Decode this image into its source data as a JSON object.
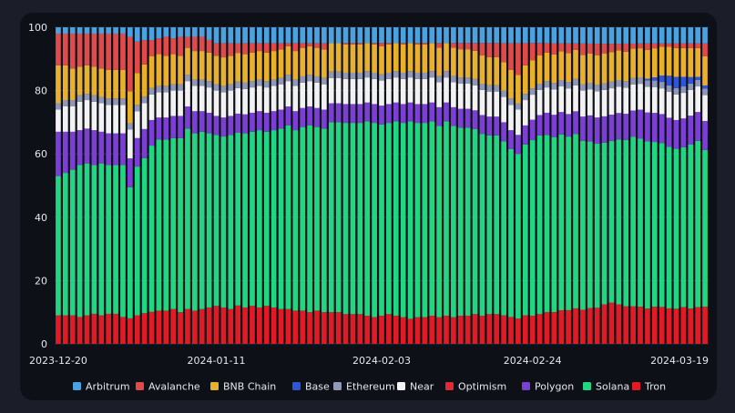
{
  "colors": {
    "Arbitrum": "#4aa3e0",
    "Avalanche": "#e04a4a",
    "BNB Chain": "#e8b02c",
    "Base": "#2f56d8",
    "Ethereum": "#8f98b8",
    "Near": "#f2f2f2",
    "Optimism": "#e02a36",
    "Polygon": "#7b3fd6",
    "Solana": "#22d582",
    "Tron": "#e01b26"
  },
  "chart_data": {
    "type": "bar",
    "stacked": true,
    "percent": true,
    "ylim": [
      0,
      100
    ],
    "yticks": [
      0,
      20,
      40,
      60,
      80,
      100
    ],
    "x_tick_labels": [
      "2023-12-20",
      "2024-01-11",
      "2024-02-03",
      "2024-02-24",
      "2024-03-19"
    ],
    "x_tick_index": [
      0,
      22,
      45,
      66,
      89
    ],
    "legend": [
      "Arbitrum",
      "Avalanche",
      "BNB Chain",
      "Base",
      "Ethereum",
      "Near",
      "Optimism",
      "Polygon",
      "Solana",
      "Tron"
    ],
    "stack_order": [
      "Tron",
      "Optimism",
      "Solana",
      "Polygon",
      "Near",
      "Ethereum",
      "Base",
      "BNB Chain",
      "Avalanche",
      "Arbitrum"
    ],
    "x": [
      "2023-12-20",
      "2023-12-21",
      "2023-12-22",
      "2023-12-23",
      "2023-12-24",
      "2023-12-25",
      "2023-12-26",
      "2023-12-27",
      "2023-12-28",
      "2023-12-29",
      "2023-12-30",
      "2023-12-31",
      "2024-01-01",
      "2024-01-02",
      "2024-01-03",
      "2024-01-04",
      "2024-01-05",
      "2024-01-06",
      "2024-01-07",
      "2024-01-08",
      "2024-01-09",
      "2024-01-10",
      "2024-01-11",
      "2024-01-12",
      "2024-01-13",
      "2024-01-14",
      "2024-01-15",
      "2024-01-16",
      "2024-01-17",
      "2024-01-18",
      "2024-01-19",
      "2024-01-20",
      "2024-01-21",
      "2024-01-22",
      "2024-01-23",
      "2024-01-24",
      "2024-01-25",
      "2024-01-26",
      "2024-01-27",
      "2024-01-28",
      "2024-01-29",
      "2024-01-30",
      "2024-01-31",
      "2024-02-01",
      "2024-02-02",
      "2024-02-03",
      "2024-02-04",
      "2024-02-05",
      "2024-02-06",
      "2024-02-07",
      "2024-02-08",
      "2024-02-09",
      "2024-02-10",
      "2024-02-11",
      "2024-02-12",
      "2024-02-13",
      "2024-02-14",
      "2024-02-15",
      "2024-02-16",
      "2024-02-17",
      "2024-02-18",
      "2024-02-19",
      "2024-02-20",
      "2024-02-21",
      "2024-02-22",
      "2024-02-23",
      "2024-02-24",
      "2024-02-25",
      "2024-02-26",
      "2024-02-27",
      "2024-02-28",
      "2024-02-29",
      "2024-03-01",
      "2024-03-02",
      "2024-03-03",
      "2024-03-04",
      "2024-03-05",
      "2024-03-06",
      "2024-03-07",
      "2024-03-08",
      "2024-03-09",
      "2024-03-10",
      "2024-03-11",
      "2024-03-12",
      "2024-03-13",
      "2024-03-14",
      "2024-03-15",
      "2024-03-16",
      "2024-03-17",
      "2024-03-18",
      "2024-03-19"
    ],
    "series": [
      {
        "name": "Tron",
        "values": [
          9,
          9,
          9,
          8.5,
          9,
          9.5,
          9,
          9.5,
          9.5,
          8.5,
          8,
          9,
          9.5,
          10,
          10.5,
          10.5,
          11,
          10,
          11,
          10.5,
          11,
          11.5,
          12,
          11.5,
          11,
          12,
          11.5,
          12,
          11.5,
          12,
          11.5,
          11,
          11,
          10.5,
          10.5,
          10,
          10.5,
          10,
          10,
          10,
          9.5,
          9.5,
          9.5,
          9,
          8.5,
          9,
          9.5,
          9,
          8.5,
          8,
          8.5,
          8.5,
          9,
          8.5,
          9,
          8.5,
          9,
          9,
          9.5,
          9,
          9.5,
          9.5,
          9,
          8.5,
          8,
          9,
          9,
          9.5,
          10,
          10,
          10.5,
          10.5,
          11,
          10.5,
          11,
          11,
          12,
          12.5,
          12,
          11.5,
          11.5,
          11.5,
          11,
          11.5,
          11.5,
          11,
          11,
          11.5,
          11,
          11.5,
          11.5
        ]
      },
      {
        "name": "Optimism",
        "values": [
          0,
          0,
          0,
          0,
          0,
          0,
          0,
          0,
          0,
          0,
          0,
          0,
          0,
          0,
          0,
          0,
          0,
          0,
          0,
          0,
          0,
          0,
          0,
          0,
          0,
          0,
          0,
          0,
          0,
          0,
          0,
          0,
          0,
          0,
          0,
          0,
          0,
          0,
          0,
          0,
          0,
          0,
          0,
          0,
          0,
          0,
          0,
          0,
          0,
          0,
          0,
          0,
          0,
          0,
          0,
          0,
          0,
          0,
          0,
          0,
          0,
          0,
          0,
          0,
          0,
          0,
          0,
          0,
          0,
          0,
          0,
          0,
          0,
          0,
          0,
          0,
          0,
          0,
          0,
          0,
          0,
          0,
          0,
          0,
          0,
          0,
          0,
          0,
          0,
          0,
          0
        ]
      },
      {
        "name": "Solana",
        "values": [
          44,
          45,
          46,
          48,
          48,
          47,
          48,
          47,
          47,
          48,
          41,
          47,
          48,
          52,
          54,
          54,
          54,
          55,
          57,
          56,
          56,
          55,
          54,
          54,
          55,
          54,
          55,
          55,
          56,
          55,
          56,
          57,
          58,
          57,
          58,
          59,
          58,
          58,
          60,
          60,
          61,
          61,
          61,
          62,
          62,
          61,
          61,
          62,
          62,
          63,
          62,
          62,
          62,
          61,
          62,
          61,
          60,
          60,
          59,
          58,
          57,
          57,
          55,
          53,
          52,
          54,
          56,
          57,
          56,
          55,
          55,
          54,
          54,
          52,
          51,
          50,
          49,
          49,
          50,
          51,
          52,
          52,
          52,
          51,
          51,
          50,
          50,
          50,
          51,
          52,
          48.5
        ]
      },
      {
        "name": "Polygon",
        "values": [
          14,
          13,
          12,
          11,
          11,
          11,
          10,
          10,
          10,
          10,
          9,
          9,
          9,
          8,
          7,
          7,
          7,
          7,
          7,
          7,
          6.5,
          6.5,
          6,
          6,
          6,
          6,
          6,
          6,
          6,
          6,
          6,
          6,
          6,
          6,
          6,
          6,
          6,
          6,
          6,
          6,
          6,
          6,
          6,
          6,
          6,
          6,
          6,
          6,
          6,
          6,
          6,
          6,
          6,
          6,
          6,
          6,
          6,
          6,
          6,
          6,
          6,
          6,
          6,
          6,
          6,
          6,
          6.5,
          6.5,
          7,
          7,
          7,
          7,
          7,
          7.5,
          8,
          8,
          8,
          8,
          8,
          8,
          8,
          9,
          9,
          9,
          9,
          9,
          9,
          9,
          9,
          9,
          9
        ]
      },
      {
        "name": "Near",
        "values": [
          7,
          8,
          8,
          9,
          9,
          9,
          9,
          9,
          9,
          9,
          9,
          8.5,
          8,
          8,
          8,
          8,
          8,
          8,
          8,
          8,
          8,
          8,
          8,
          8,
          8,
          8,
          8,
          8,
          8,
          8,
          8,
          8,
          8,
          8,
          8,
          8,
          8,
          8,
          8,
          8,
          8,
          8,
          8,
          8,
          8,
          8,
          8,
          8,
          8,
          8,
          8,
          8,
          8,
          8,
          8,
          8,
          8,
          8,
          8,
          8,
          8,
          8,
          8,
          8,
          8,
          8,
          8,
          8,
          8,
          8,
          8,
          8,
          8,
          8,
          8,
          8,
          8,
          8,
          8,
          8,
          8,
          8,
          8,
          8,
          8,
          8,
          8,
          8,
          8,
          8,
          8
        ]
      },
      {
        "name": "Ethereum",
        "values": [
          2,
          2,
          2,
          2,
          2,
          2,
          2,
          2,
          2,
          2,
          2,
          2,
          2,
          2,
          2,
          2,
          2,
          2,
          2,
          2,
          2,
          2,
          2,
          2,
          2,
          2,
          2,
          2,
          2,
          2,
          2,
          2,
          2,
          2,
          2,
          2,
          2,
          2,
          2,
          2,
          2,
          2,
          2,
          2,
          2,
          2,
          2,
          2,
          2,
          2,
          2,
          2,
          2,
          2,
          2,
          2,
          2,
          2,
          2,
          2,
          2,
          2,
          2,
          2,
          2,
          2,
          2,
          2,
          2,
          2,
          2,
          2,
          2,
          2,
          2,
          2,
          2,
          2,
          2,
          2,
          2,
          2,
          2,
          2,
          2,
          2,
          2,
          2,
          2,
          2,
          2
        ]
      },
      {
        "name": "Base",
        "values": [
          0,
          0,
          0,
          0,
          0,
          0,
          0,
          0,
          0,
          0,
          0,
          0,
          0,
          0,
          0,
          0,
          0,
          0,
          0,
          0,
          0,
          0,
          0,
          0,
          0,
          0,
          0,
          0,
          0,
          0,
          0,
          0,
          0,
          0,
          0,
          0,
          0,
          0,
          0,
          0,
          0,
          0,
          0,
          0,
          0,
          0,
          0,
          0,
          0,
          0,
          0,
          0,
          0,
          0,
          0,
          0,
          0,
          0,
          0,
          0,
          0,
          0,
          0,
          0,
          0,
          0,
          0,
          0,
          0,
          0,
          0,
          0,
          0,
          0,
          0,
          0,
          0,
          0,
          0,
          0,
          0,
          0,
          0.5,
          1,
          2,
          3,
          3.5,
          3,
          2,
          1,
          1
        ]
      },
      {
        "name": "BNB Chain",
        "values": [
          12,
          11,
          10,
          9,
          9,
          9,
          9,
          9,
          9,
          9,
          10,
          10,
          10,
          10,
          10,
          9.5,
          9.5,
          9,
          8.5,
          9,
          9,
          9,
          9,
          9,
          9,
          9,
          9,
          9,
          9,
          9,
          9,
          9,
          9,
          9,
          9,
          9,
          9,
          9,
          9,
          9,
          9,
          9,
          9,
          9,
          9,
          9,
          9,
          9,
          9,
          9,
          9,
          9,
          9,
          9,
          9,
          9,
          9,
          9,
          9,
          9,
          9,
          9,
          9,
          9,
          9,
          9,
          9,
          9,
          9,
          9,
          9,
          9,
          9,
          9,
          9,
          9,
          9,
          9,
          9,
          9,
          9,
          9,
          9,
          9,
          9,
          9,
          9,
          9,
          9,
          9,
          9
        ]
      },
      {
        "name": "Avalanche",
        "values": [
          10,
          10,
          11,
          10.5,
          10,
          10.5,
          11,
          11.5,
          11.5,
          11.5,
          17,
          10,
          7.5,
          5,
          5,
          6,
          5,
          6,
          3.5,
          4.5,
          4.5,
          4,
          4,
          4.5,
          4,
          3,
          3.5,
          3,
          2.5,
          3,
          2.5,
          2,
          1,
          2.5,
          1.5,
          1,
          1.5,
          2,
          0,
          0,
          0.5,
          0.5,
          0.5,
          0,
          0.5,
          1,
          0.5,
          0,
          0.5,
          0,
          0.5,
          0.5,
          0,
          1.5,
          0,
          1.5,
          2,
          2,
          2.5,
          4,
          4.5,
          4.5,
          6,
          8.5,
          10,
          7,
          5.5,
          4,
          3,
          3.5,
          2.5,
          3,
          2,
          3.5,
          3,
          3.5,
          3,
          2.5,
          2,
          2.5,
          1.5,
          1.5,
          2,
          1.5,
          1,
          1,
          1.5,
          1.5,
          1.5,
          1.5,
          4
        ]
      },
      {
        "name": "Arbitrum",
        "values": [
          2,
          2,
          2,
          2,
          2,
          2,
          2,
          2,
          2,
          2,
          3,
          4.5,
          4,
          4,
          3.5,
          3,
          3.5,
          3,
          3,
          3,
          3,
          4,
          5,
          5,
          5,
          5,
          5,
          5,
          5,
          5,
          5,
          5,
          5,
          5,
          5,
          5,
          5,
          5,
          5,
          5,
          5,
          5,
          5,
          5,
          5,
          5,
          5,
          5,
          5,
          5,
          5,
          5,
          5,
          5,
          5,
          5,
          5,
          5,
          5,
          5,
          5,
          5,
          5,
          5,
          5,
          5,
          5,
          5,
          5,
          5,
          5,
          5,
          5,
          5,
          5,
          5,
          5,
          5,
          5,
          5,
          5,
          5,
          5,
          5,
          5,
          5,
          5,
          5,
          5,
          5,
          5
        ]
      }
    ]
  }
}
